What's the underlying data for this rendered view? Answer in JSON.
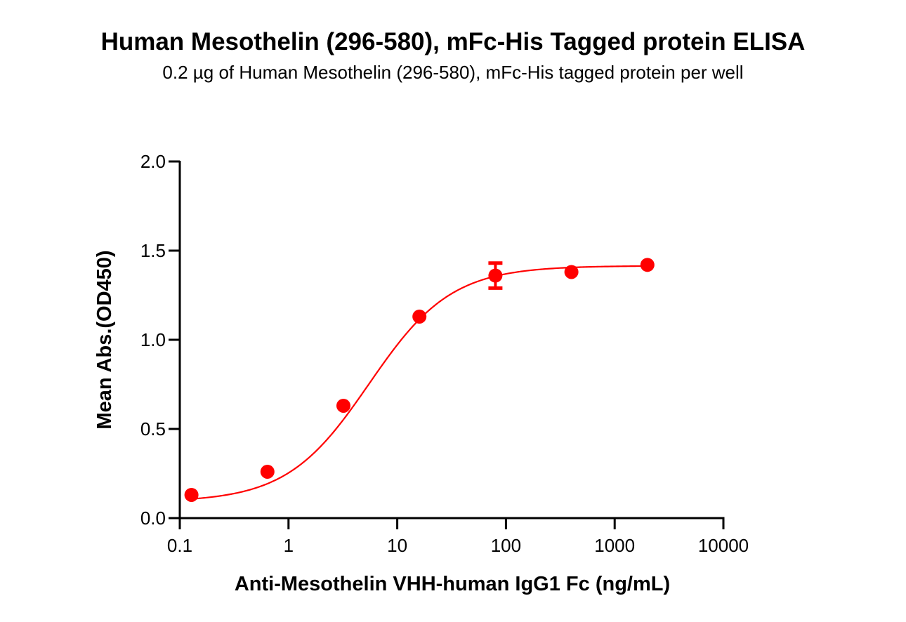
{
  "title": "Human Mesothelin (296-580), mFc-His Tagged protein ELISA",
  "subtitle": "0.2 µg of Human Mesothelin (296-580), mFc-His tagged protein per well",
  "colors": {
    "series": "#ff0000",
    "axis": "#000000",
    "background": "#ffffff"
  },
  "chart_data": {
    "type": "scatter",
    "title": "Human Mesothelin (296-580), mFc-His Tagged protein ELISA",
    "subtitle": "0.2 µg of Human Mesothelin (296-580), mFc-His tagged protein per well",
    "xlabel": "Anti-Mesothelin VHH-human IgG1 Fc (ng/mL)",
    "ylabel": "Mean Abs.(OD450)",
    "xscale": "log",
    "xlim": [
      0.1,
      10000
    ],
    "ylim": [
      0.0,
      2.0
    ],
    "x_ticks": [
      "0.1",
      "1",
      "10",
      "100",
      "1000",
      "10000"
    ],
    "y_ticks": [
      "0.0",
      "0.5",
      "1.0",
      "1.5",
      "2.0"
    ],
    "grid": false,
    "legend": null,
    "series": [
      {
        "name": "Anti-Mesothelin VHH-human IgG1 Fc",
        "x": [
          0.128,
          0.64,
          3.2,
          16,
          80,
          400,
          2000
        ],
        "y": [
          0.13,
          0.26,
          0.63,
          1.13,
          1.36,
          1.38,
          1.42
        ],
        "error": [
          0.0,
          0.0,
          0.0,
          0.0,
          0.07,
          0.0,
          0.0
        ],
        "fit": "4-parameter logistic curve",
        "color": "#ff0000"
      }
    ]
  }
}
